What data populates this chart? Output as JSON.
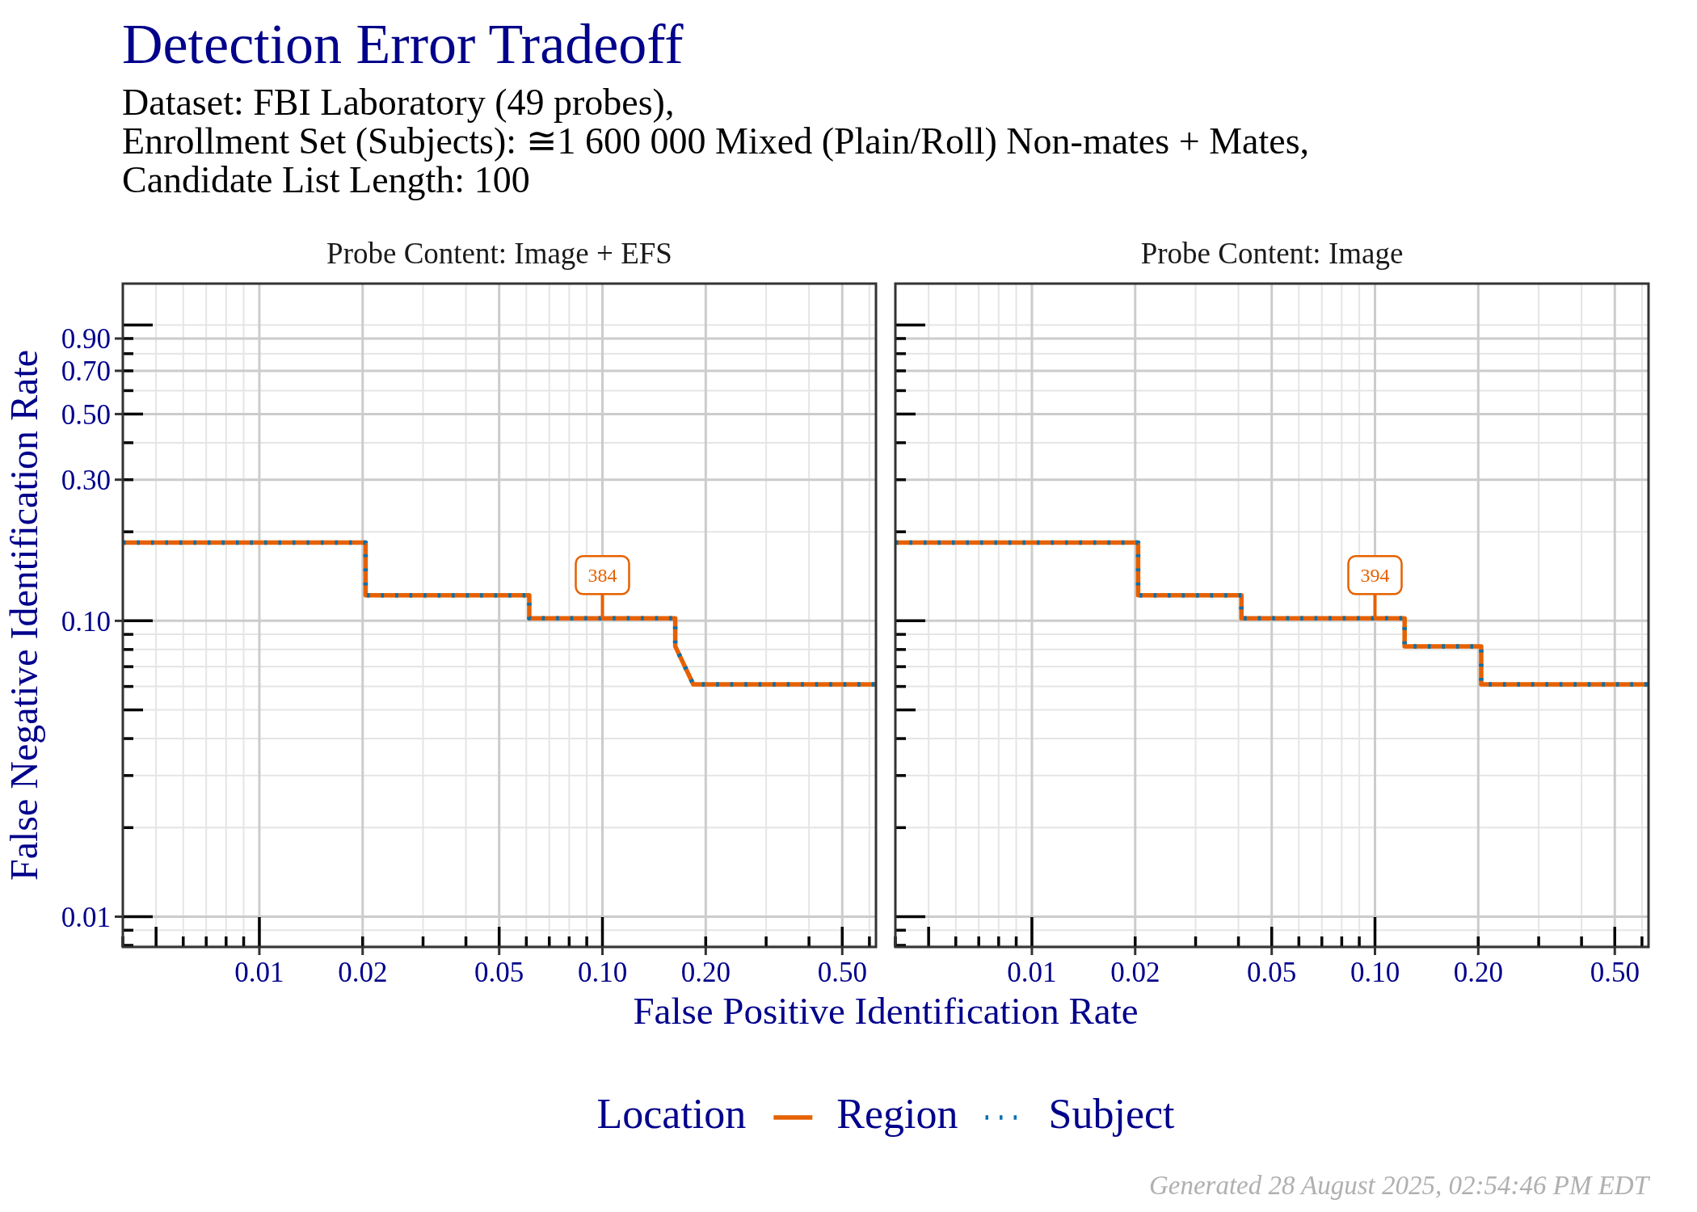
{
  "chart_data": [
    {
      "type": "line",
      "title": "Detection Error Tradeoff",
      "subtitle": "Dataset: FBI Laboratory (49 probes),\nEnrollment Set (Subjects): ≅1 600 000 Mixed (Plain/Roll) Non-mates + Mates,\nCandidate List Length: 100",
      "xlabel": "False Positive Identification Rate",
      "ylabel": "False Negative Identification Rate",
      "legend_title": "Location",
      "legend": "bottom",
      "log": "xy",
      "grid": true,
      "xlim": [
        0.004,
        0.627
      ],
      "ylim": [
        0.0079,
        1.38
      ],
      "xticks": [
        {
          "value": 0.004,
          "label": null
        },
        {
          "value": 0.005,
          "label": null
        },
        {
          "value": 0.006,
          "label": null
        },
        {
          "value": 0.007,
          "label": null
        },
        {
          "value": 0.008,
          "label": null
        },
        {
          "value": 0.009,
          "label": null
        },
        0.01,
        0.02,
        {
          "value": 0.03,
          "label": null
        },
        {
          "value": 0.04,
          "label": null
        },
        0.05,
        {
          "value": 0.06,
          "label": null
        },
        {
          "value": 0.07,
          "label": null
        },
        {
          "value": 0.08,
          "label": null
        },
        {
          "value": 0.09,
          "label": null
        },
        {
          "value": 0.1,
          "label": "0.10"
        },
        {
          "value": 0.2,
          "label": "0.20"
        },
        {
          "value": 0.3,
          "label": null
        },
        {
          "value": 0.4,
          "label": null
        },
        {
          "value": 0.5,
          "label": "0.50"
        },
        {
          "value": 0.6,
          "label": null
        }
      ],
      "yticks": [
        {
          "value": 0.008,
          "label": null
        },
        {
          "value": 0.009,
          "label": null
        },
        0.01,
        {
          "value": 0.02,
          "label": null
        },
        {
          "value": 0.03,
          "label": null
        },
        {
          "value": 0.04,
          "label": null
        },
        {
          "value": 0.05,
          "label": null
        },
        {
          "value": 0.06,
          "label": null
        },
        {
          "value": 0.07,
          "label": null
        },
        {
          "value": 0.08,
          "label": null
        },
        {
          "value": 0.09,
          "label": null
        },
        {
          "value": 0.1,
          "label": "0.10"
        },
        {
          "value": 0.2,
          "label": null
        },
        {
          "value": 0.3,
          "label": "0.30"
        },
        {
          "value": 0.4,
          "label": null
        },
        {
          "value": 0.5,
          "label": "0.50"
        },
        {
          "value": 0.6,
          "label": null
        },
        {
          "value": 0.7,
          "label": "0.70"
        },
        {
          "value": 0.8,
          "label": null
        },
        {
          "value": 0.9,
          "label": "0.90"
        },
        {
          "value": 1,
          "label": null
        }
      ],
      "series": [
        {
          "name": "Region",
          "color": "#e66101",
          "line_style": "solid",
          "x": [
            0.004,
            0.0204,
            0.0204,
            0.0612,
            0.0612,
            0.163,
            0.163,
            0.184,
            0.627
          ],
          "values": [
            0.184,
            0.184,
            0.122,
            0.122,
            0.102,
            0.102,
            0.082,
            0.061,
            0.061
          ]
        },
        {
          "name": "Subject",
          "color": "#0571b0",
          "line_style": "dotted",
          "x": [
            0.004,
            0.0204,
            0.0204,
            0.0612,
            0.0612,
            0.163,
            0.163,
            0.184,
            0.627
          ],
          "values": [
            0.184,
            0.184,
            0.122,
            0.122,
            0.102,
            0.102,
            0.082,
            0.061,
            0.061
          ]
        }
      ],
      "annotations": [
        "Probe Content: Image + EFS",
        {
          "text": "384",
          "x": 0.1,
          "y": 0.102
        },
        "Generated 28 August 2025, 02:54:46 PM EDT"
      ]
    },
    {
      "type": "line",
      "title": "Probe Content: Image",
      "log": "xy",
      "grid": true,
      "tick_labels": "x",
      "xlim": [
        0.004,
        0.627
      ],
      "ylim": [
        0.0079,
        1.38
      ],
      "xticks": [
        {
          "value": 0.004,
          "label": null
        },
        {
          "value": 0.005,
          "label": null
        },
        {
          "value": 0.006,
          "label": null
        },
        {
          "value": 0.007,
          "label": null
        },
        {
          "value": 0.008,
          "label": null
        },
        {
          "value": 0.009,
          "label": null
        },
        0.01,
        0.02,
        {
          "value": 0.03,
          "label": null
        },
        {
          "value": 0.04,
          "label": null
        },
        0.05,
        {
          "value": 0.06,
          "label": null
        },
        {
          "value": 0.07,
          "label": null
        },
        {
          "value": 0.08,
          "label": null
        },
        {
          "value": 0.09,
          "label": null
        },
        {
          "value": 0.1,
          "label": "0.10"
        },
        {
          "value": 0.2,
          "label": "0.20"
        },
        {
          "value": 0.3,
          "label": null
        },
        {
          "value": 0.4,
          "label": null
        },
        {
          "value": 0.5,
          "label": "0.50"
        },
        {
          "value": 0.6,
          "label": null
        }
      ],
      "yticks": [
        {
          "value": 0.008,
          "label": null
        },
        {
          "value": 0.009,
          "label": null
        },
        {
          "value": 0.01,
          "label": null
        },
        {
          "value": 0.02,
          "label": null
        },
        {
          "value": 0.03,
          "label": null
        },
        {
          "value": 0.04,
          "label": null
        },
        {
          "value": 0.05,
          "label": null
        },
        {
          "value": 0.06,
          "label": null
        },
        {
          "value": 0.07,
          "label": null
        },
        {
          "value": 0.08,
          "label": null
        },
        {
          "value": 0.09,
          "label": null
        },
        {
          "value": 0.1,
          "label": null
        },
        {
          "value": 0.2,
          "label": null
        },
        {
          "value": 0.3,
          "label": null
        },
        {
          "value": 0.4,
          "label": null
        },
        {
          "value": 0.5,
          "label": null
        },
        {
          "value": 0.6,
          "label": null
        },
        {
          "value": 0.7,
          "label": null
        },
        {
          "value": 0.8,
          "label": null
        },
        {
          "value": 0.9,
          "label": null
        },
        {
          "value": 1,
          "label": null
        }
      ],
      "series": [
        {
          "color": "#e66101",
          "line_style": "solid",
          "x": [
            0.004,
            0.0204,
            0.0204,
            0.0408,
            0.0408,
            0.122,
            0.122,
            0.204,
            0.204,
            0.627
          ],
          "values": [
            0.184,
            0.184,
            0.122,
            0.122,
            0.102,
            0.102,
            0.082,
            0.082,
            0.061,
            0.061
          ]
        },
        {
          "color": "#0571b0",
          "line_style": "dotted",
          "x": [
            0.004,
            0.0204,
            0.0204,
            0.0408,
            0.0408,
            0.122,
            0.122,
            0.204,
            0.204,
            0.627
          ],
          "values": [
            0.184,
            0.184,
            0.122,
            0.122,
            0.102,
            0.102,
            0.082,
            0.082,
            0.061,
            0.061
          ]
        }
      ],
      "annotations": [
        {
          "text": "394",
          "x": 0.1,
          "y": 0.102
        }
      ]
    }
  ]
}
